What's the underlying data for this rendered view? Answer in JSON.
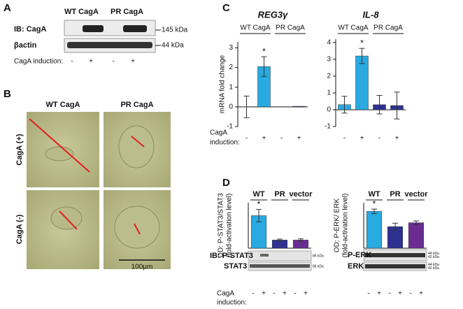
{
  "panel_a": {
    "letter": "A",
    "columns": [
      "WT CagA",
      "PR CagA"
    ],
    "rows": [
      {
        "label": "IB: CagA",
        "marker": "145 kDa"
      },
      {
        "label": "βactin",
        "marker": "44 kDa"
      }
    ],
    "induction_label": "CagA induction:",
    "induction_signs": [
      "-",
      "+",
      "-",
      "+"
    ]
  },
  "panel_b": {
    "letter": "B",
    "columns": [
      "WT CagA",
      "PR CagA"
    ],
    "rows": [
      "CagA (+)",
      "CagA (-)"
    ],
    "scale_bar": "100μm"
  },
  "panel_c": {
    "letter": "C",
    "induction_label": [
      "CagA",
      "induction:"
    ]
  },
  "panel_d": {
    "letter": "D",
    "blots": [
      {
        "rows": [
          {
            "label": "IB: P-STAT3",
            "markers": [
              "86 kDa"
            ]
          },
          {
            "label": "STAT3",
            "markers": [
              "86 kDa"
            ]
          }
        ]
      },
      {
        "rows": [
          {
            "label": "P-ERK",
            "markers": [
              "44 kDa",
              "42 kDa"
            ]
          },
          {
            "label": "ERK",
            "markers": [
              "44 kDa",
              "42 kDa"
            ]
          }
        ]
      }
    ],
    "induction_label": [
      "CagA",
      "induction:"
    ],
    "induction_signs": [
      [
        "-",
        "+",
        "-",
        "+",
        "-",
        "+"
      ],
      [
        "-",
        "+",
        "-",
        "+",
        "-",
        "+"
      ]
    ]
  },
  "chart_data": [
    {
      "type": "bar",
      "title": "REG3γ",
      "y_label": [
        "mRNA fold change"
      ],
      "groups": [
        "WT CagA",
        "PR CagA"
      ],
      "categories": [
        "-",
        "+",
        "-",
        "+"
      ],
      "values": [
        0,
        2.05,
        0,
        0.03
      ],
      "errors": [
        0.55,
        0.5,
        0,
        0
      ],
      "colors": [
        "#29aae1",
        "#29aae1",
        "#2e3192",
        "#2e3192"
      ],
      "annotations": [
        {
          "text": "*",
          "at": 1
        }
      ],
      "ylim": [
        -1,
        3.3
      ],
      "yticks": [
        -1,
        0,
        1,
        2,
        3
      ]
    },
    {
      "type": "bar",
      "title": "IL-8",
      "groups": [
        "WT CagA",
        "PR CagA"
      ],
      "categories": [
        "-",
        "+",
        "-",
        "+"
      ],
      "values": [
        0.3,
        3.2,
        0.3,
        0.25
      ],
      "errors": [
        0.5,
        0.45,
        0.55,
        0.8
      ],
      "colors": [
        "#29aae1",
        "#29aae1",
        "#2e3192",
        "#2e3192"
      ],
      "annotations": [
        {
          "text": "*",
          "at": 1
        }
      ],
      "ylim": [
        -1,
        4.2
      ],
      "yticks": [
        -1,
        0,
        1,
        2,
        3,
        4
      ]
    },
    {
      "type": "bar",
      "y_label": [
        "OD: P-STAT3/STAT3",
        "(fold-activation level)"
      ],
      "categories": [
        "WT",
        "PR",
        "vector"
      ],
      "values": [
        6.8,
        1.7,
        1.7
      ],
      "errors": [
        1.3,
        0.2,
        0.25
      ],
      "colors": [
        "#29aae1",
        "#2e3192",
        "#6a2c91"
      ],
      "annotations": [
        {
          "text": "*",
          "at": 0
        }
      ],
      "ylim": [
        0,
        9.5
      ]
    },
    {
      "type": "bar",
      "y_label": [
        "OD: P-ERK/ ERK",
        "(fold-activation level)"
      ],
      "categories": [
        "WT",
        "PR",
        "vector"
      ],
      "values": [
        1.62,
        0.95,
        1.12
      ],
      "errors": [
        0.1,
        0.15,
        0.08
      ],
      "colors": [
        "#29aae1",
        "#2e3192",
        "#6a2c91"
      ],
      "annotations": [
        {
          "text": "*",
          "at": 0
        }
      ],
      "ylim": [
        0,
        2.0
      ]
    }
  ]
}
